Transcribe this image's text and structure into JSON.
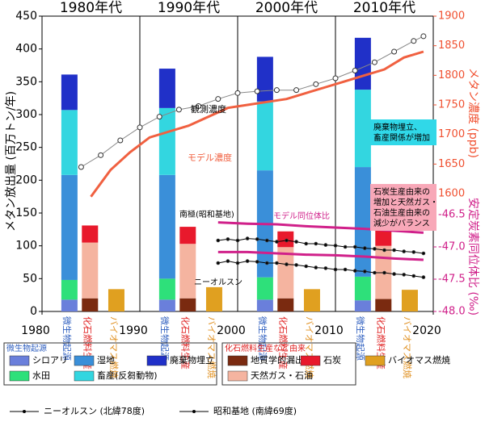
{
  "chart_data": {
    "type": "combo",
    "decades": [
      "1980年代",
      "1990年代",
      "2000年代",
      "2010年代"
    ],
    "xlim": [
      1980,
      2020
    ],
    "xticks": [
      1980,
      1990,
      2000,
      2010,
      2020
    ],
    "ylabel": "メタン放出量 (百万トン/年)",
    "ylim": [
      0,
      450
    ],
    "yticks": [
      0,
      50,
      100,
      150,
      200,
      250,
      300,
      350,
      400,
      450
    ],
    "y2label": "メタン濃度 (ppb)",
    "y2color": "#f05030",
    "y2lim": [
      1600,
      1900
    ],
    "y2ticks": [
      1600,
      1650,
      1700,
      1750,
      1800,
      1850,
      1900
    ],
    "y3label": "安定炭素同位体比 (‰)",
    "y3color": "#d0208a",
    "y3lim": [
      -48.0,
      -46.5
    ],
    "y3ticks": [
      {
        "value": -48.0,
        "label": "-48.0"
      },
      -47.5,
      {
        "value": -47.0,
        "label": "-47.0"
      },
      -46.5
    ],
    "stacks": [
      {
        "name": "微生物起源",
        "label_color": "#3060c0",
        "segments": [
          {
            "name": "シロアリ",
            "color": "#6a7fdb",
            "values": [
              18,
              18,
              18,
              17
            ]
          },
          {
            "name": "水田",
            "color": "#2ee07a",
            "values": [
              30,
              32,
              34,
              36
            ]
          },
          {
            "name": "湿地",
            "color": "#3a8fd9",
            "values": [
              160,
              158,
              163,
              167
            ]
          },
          {
            "name": "畜産(反芻動物)",
            "color": "#33d6e0",
            "values": [
              99,
              102,
              105,
              118
            ]
          },
          {
            "name": "廃棄物埋立",
            "color": "#2030c8",
            "values": [
              54,
              60,
              68,
              79
            ]
          }
        ]
      },
      {
        "name": "化石燃料生産",
        "label_color": "#e02020",
        "segments": [
          {
            "name": "地質学的漏出",
            "color": "#7a2a10",
            "values": [
              20,
              20,
              20,
              19
            ]
          },
          {
            "name": "天然ガス・石油",
            "color": "#f5b4a0",
            "values": [
              85,
              83,
              78,
              81
            ]
          },
          {
            "name": "石炭",
            "color": "#e8192c",
            "values": [
              26,
              26,
              24,
              25
            ]
          }
        ]
      },
      {
        "name": "バイオマス燃焼",
        "label_color": "#e09020",
        "segments": [
          {
            "name": "バイオマス燃焼",
            "color": "#e0a020",
            "values": [
              34,
              37,
              34,
              33
            ]
          }
        ]
      }
    ],
    "legend_groups": [
      "微生物起源",
      "化石燃料生産など由来"
    ],
    "lines": [
      {
        "name": "観測濃度",
        "axis": "y2",
        "color": "#888888",
        "markers": "circle",
        "x": [
          1984,
          1986,
          1988,
          1990,
          1992,
          1994,
          1996,
          1998,
          2000,
          2002,
          2004,
          2006,
          2008,
          2010,
          2012,
          2014,
          2016,
          2018,
          2019
        ],
        "values": [
          1645,
          1665,
          1690,
          1712,
          1730,
          1742,
          1748,
          1760,
          1770,
          1773,
          1775,
          1775,
          1785,
          1795,
          1808,
          1822,
          1840,
          1858,
          1866
        ]
      },
      {
        "name": "モデル濃度",
        "axis": "y2",
        "color": "#f06040",
        "x": [
          1985,
          1987,
          1989,
          1991,
          1993,
          1995,
          1997,
          1999,
          2001,
          2003,
          2005,
          2007,
          2009,
          2011,
          2013,
          2015,
          2017,
          2019
        ],
        "values": [
          1595,
          1640,
          1670,
          1695,
          1705,
          1715,
          1730,
          1745,
          1750,
          1755,
          1760,
          1770,
          1780,
          1790,
          1800,
          1810,
          1830,
          1840
        ]
      },
      {
        "name": "昭和基地 (南緯69度)",
        "axis": "y3",
        "color": "#000000",
        "markers": "dot",
        "x": [
          1998,
          1999,
          2000,
          2001,
          2002,
          2003,
          2004,
          2005,
          2006,
          2007,
          2008,
          2009,
          2010,
          2011,
          2012,
          2013,
          2014,
          2015,
          2016,
          2017,
          2018,
          2019
        ],
        "values": [
          -46.9,
          -46.88,
          -46.9,
          -46.87,
          -46.88,
          -46.9,
          -46.92,
          -46.9,
          -46.92,
          -46.95,
          -46.95,
          -46.97,
          -46.98,
          -47.0,
          -47.0,
          -47.02,
          -47.03,
          -47.05,
          -47.05,
          -47.07,
          -47.08,
          -47.1
        ]
      },
      {
        "name": "ニーオルスン (北緯78度)",
        "axis": "y3",
        "color": "#000000",
        "markers": "dot",
        "x": [
          1998,
          1999,
          2000,
          2001,
          2002,
          2003,
          2004,
          2005,
          2006,
          2007,
          2008,
          2009,
          2010,
          2011,
          2012,
          2013,
          2014,
          2015,
          2016,
          2017,
          2018,
          2019
        ],
        "values": [
          -47.25,
          -47.22,
          -47.25,
          -47.22,
          -47.23,
          -47.25,
          -47.25,
          -47.27,
          -47.28,
          -47.3,
          -47.32,
          -47.33,
          -47.35,
          -47.35,
          -47.37,
          -47.38,
          -47.4,
          -47.4,
          -47.42,
          -47.43,
          -47.45,
          -47.47
        ]
      },
      {
        "axis": "y3",
        "color": "#d0208a",
        "x": [
          1998,
          2001,
          2004,
          2007,
          2010,
          2013,
          2016,
          2019
        ],
        "values": [
          -46.62,
          -46.64,
          -46.65,
          -46.68,
          -46.7,
          -46.72,
          -46.75,
          -46.78
        ]
      },
      {
        "axis": "y3",
        "color": "#d0208a",
        "x": [
          1998,
          2001,
          2004,
          2007,
          2010,
          2013,
          2016,
          2019
        ],
        "values": [
          -47.08,
          -47.08,
          -47.1,
          -47.12,
          -47.13,
          -47.15,
          -47.18,
          -47.2
        ]
      }
    ],
    "annotations": {
      "observed": "観測濃度",
      "model": "モデル濃度",
      "syowa": "南極(昭和基地)",
      "model_isotope": "モデル同位体比",
      "ny": "ニーオルスン"
    },
    "notes": [
      {
        "lines": [
          "廃棄物埋立、",
          "畜産関係が増加"
        ],
        "background": "#30d8e8"
      },
      {
        "lines": [
          "石炭生産由来の",
          "増加と天然ガス・",
          "石油生産由来の",
          "減少がバランス"
        ],
        "background": "#f8a8b8"
      }
    ]
  }
}
